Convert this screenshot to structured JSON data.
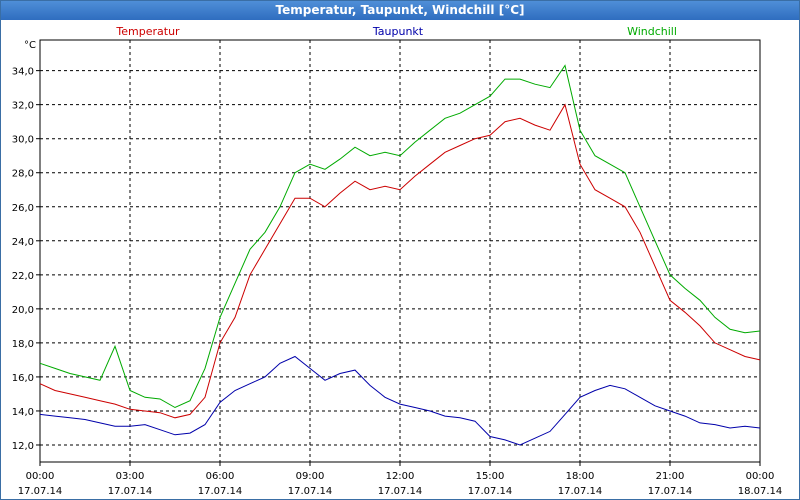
{
  "window": {
    "title": "Temperatur, Taupunkt, Windchill [°C]"
  },
  "chart_data": {
    "type": "line",
    "title": "Temperatur, Taupunkt, Windchill [°C]",
    "ylabel": "°C",
    "ylim": [
      11.0,
      35.8
    ],
    "yticks": [
      "12,0",
      "14,0",
      "16,0",
      "18,0",
      "20,0",
      "22,0",
      "24,0",
      "26,0",
      "28,0",
      "30,0",
      "32,0",
      "34,0"
    ],
    "xticks": [
      {
        "time": "00:00",
        "date": "17.07.14"
      },
      {
        "time": "03:00",
        "date": "17.07.14"
      },
      {
        "time": "06:00",
        "date": "17.07.14"
      },
      {
        "time": "09:00",
        "date": "17.07.14"
      },
      {
        "time": "12:00",
        "date": "17.07.14"
      },
      {
        "time": "15:00",
        "date": "17.07.14"
      },
      {
        "time": "18:00",
        "date": "17.07.14"
      },
      {
        "time": "21:00",
        "date": "17.07.14"
      },
      {
        "time": "00:00",
        "date": "18.07.14"
      }
    ],
    "x_unit": "hours since 17.07.14 00:00",
    "grid": true,
    "series": [
      {
        "name": "Temperatur",
        "color": "#cc0000",
        "x": [
          0,
          0.5,
          1,
          1.5,
          2,
          2.5,
          3,
          3.5,
          4,
          4.5,
          5,
          5.5,
          6,
          6.5,
          7,
          7.5,
          8,
          8.5,
          9,
          9.5,
          10,
          10.5,
          11,
          11.5,
          12,
          12.5,
          13,
          13.5,
          14,
          14.5,
          15,
          15.5,
          16,
          16.5,
          17,
          17.5,
          18,
          18.5,
          19,
          19.5,
          20,
          20.5,
          21,
          21.5,
          22,
          22.5,
          23,
          23.5,
          24
        ],
        "values": [
          15.6,
          15.2,
          15.0,
          14.8,
          14.6,
          14.4,
          14.1,
          14.0,
          13.9,
          13.6,
          13.8,
          14.8,
          18.0,
          19.5,
          22.0,
          23.5,
          25.0,
          26.5,
          26.5,
          26.0,
          26.8,
          27.5,
          27.0,
          27.2,
          27.0,
          27.8,
          28.5,
          29.2,
          29.6,
          30.0,
          30.2,
          31.0,
          31.2,
          30.8,
          30.5,
          32.0,
          28.5,
          27.0,
          26.5,
          26.0,
          24.5,
          22.5,
          20.5,
          19.8,
          19.0,
          18.0,
          17.6,
          17.2,
          17.0
        ]
      },
      {
        "name": "Taupunkt",
        "color": "#0000aa",
        "x": [
          0,
          0.5,
          1,
          1.5,
          2,
          2.5,
          3,
          3.5,
          4,
          4.5,
          5,
          5.5,
          6,
          6.5,
          7,
          7.5,
          8,
          8.5,
          9,
          9.5,
          10,
          10.5,
          11,
          11.5,
          12,
          12.5,
          13,
          13.5,
          14,
          14.5,
          15,
          15.5,
          16,
          16.5,
          17,
          17.5,
          18,
          18.5,
          19,
          19.5,
          20,
          20.5,
          21,
          21.5,
          22,
          22.5,
          23,
          23.5,
          24
        ],
        "values": [
          13.8,
          13.7,
          13.6,
          13.5,
          13.3,
          13.1,
          13.1,
          13.2,
          12.9,
          12.6,
          12.7,
          13.2,
          14.5,
          15.2,
          15.6,
          16.0,
          16.8,
          17.2,
          16.5,
          15.8,
          16.2,
          16.4,
          15.5,
          14.8,
          14.4,
          14.2,
          14.0,
          13.7,
          13.6,
          13.4,
          12.5,
          12.3,
          12.0,
          12.4,
          12.8,
          13.8,
          14.8,
          15.2,
          15.5,
          15.3,
          14.8,
          14.3,
          14.0,
          13.7,
          13.3,
          13.2,
          13.0,
          13.1,
          13.0
        ]
      },
      {
        "name": "Windchill",
        "color": "#00aa00",
        "x": [
          0,
          0.5,
          1,
          1.5,
          2,
          2.5,
          3,
          3.5,
          4,
          4.5,
          5,
          5.5,
          6,
          6.5,
          7,
          7.5,
          8,
          8.5,
          9,
          9.5,
          10,
          10.5,
          11,
          11.5,
          12,
          12.5,
          13,
          13.5,
          14,
          14.5,
          15,
          15.5,
          16,
          16.5,
          17,
          17.5,
          18,
          18.5,
          19,
          19.5,
          20,
          20.5,
          21,
          21.5,
          22,
          22.5,
          23,
          23.5,
          24
        ],
        "values": [
          16.8,
          16.5,
          16.2,
          16.0,
          15.8,
          17.8,
          15.2,
          14.8,
          14.7,
          14.2,
          14.6,
          16.5,
          19.5,
          21.5,
          23.5,
          24.5,
          26.0,
          28.0,
          28.5,
          28.2,
          28.8,
          29.5,
          29.0,
          29.2,
          29.0,
          29.8,
          30.5,
          31.2,
          31.5,
          32.0,
          32.5,
          33.5,
          33.5,
          33.2,
          33.0,
          34.3,
          30.5,
          29.0,
          28.5,
          28.0,
          26.0,
          24.0,
          22.0,
          21.2,
          20.5,
          19.5,
          18.8,
          18.6,
          18.7
        ]
      }
    ]
  }
}
